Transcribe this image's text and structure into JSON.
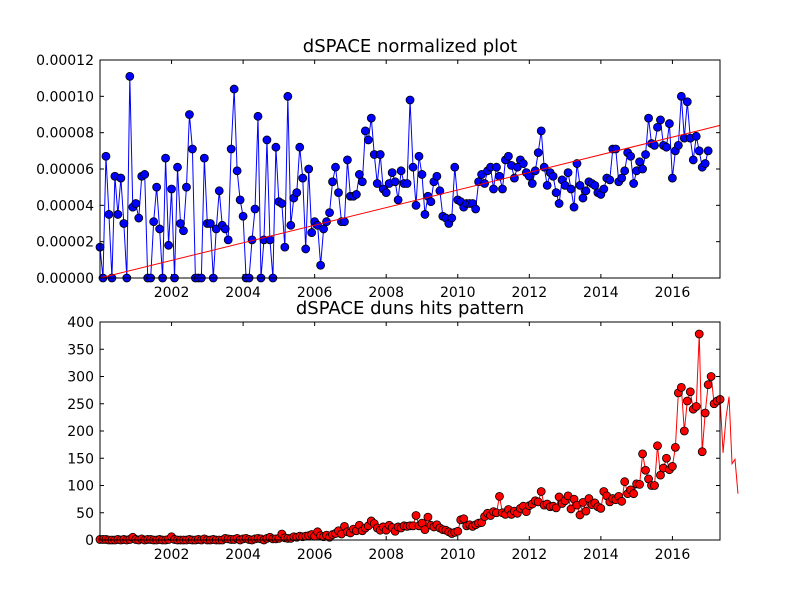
{
  "chart_data": [
    {
      "type": "line",
      "title": "dSPACE normalized plot",
      "xlabel": "",
      "ylabel": "",
      "xlim": [
        2000.0,
        2017.33
      ],
      "ylim": [
        0,
        0.00012
      ],
      "xticks": [
        2002,
        2004,
        2006,
        2008,
        2010,
        2012,
        2014,
        2016
      ],
      "xtick_labels": [
        "2002",
        "2004",
        "2006",
        "2008",
        "2010",
        "2012",
        "2014",
        "2016"
      ],
      "yticks": [
        0,
        2e-05,
        4e-05,
        6e-05,
        8e-05,
        0.0001,
        0.00012
      ],
      "ytick_labels": [
        "0.00000",
        "0.00002",
        "0.00004",
        "0.00006",
        "0.00008",
        "0.00010",
        "0.00012"
      ],
      "grid": false,
      "series": [
        {
          "color": "#0000ff",
          "marker": "circle",
          "x_start": 2000.0,
          "x_step": 0.08333,
          "values": [
            1.7e-05,
            0,
            6.7e-05,
            3.5e-05,
            0,
            5.6e-05,
            3.5e-05,
            5.5e-05,
            3e-05,
            0,
            0.000111,
            3.9e-05,
            4.1e-05,
            3.3e-05,
            5.6e-05,
            5.7e-05,
            0,
            0,
            3.1e-05,
            5e-05,
            2.7e-05,
            0,
            6.6e-05,
            1.8e-05,
            4.9e-05,
            0,
            6.1e-05,
            3e-05,
            2.6e-05,
            5e-05,
            9e-05,
            7.1e-05,
            0,
            0,
            0,
            6.6e-05,
            3e-05,
            3e-05,
            0,
            2.7e-05,
            4.8e-05,
            2.9e-05,
            2.7e-05,
            2.1e-05,
            7.1e-05,
            0.000104,
            5.9e-05,
            4.3e-05,
            3.4e-05,
            0,
            0,
            2.1e-05,
            3.8e-05,
            8.9e-05,
            0,
            2.1e-05,
            7.6e-05,
            2.1e-05,
            0,
            7.2e-05,
            4.2e-05,
            4.1e-05,
            1.7e-05,
            0.0001,
            2.9e-05,
            4.4e-05,
            4.7e-05,
            7.2e-05,
            5.5e-05,
            1.6e-05,
            6e-05,
            2.5e-05,
            3.1e-05,
            2.9e-05,
            7e-06,
            2.7e-05,
            3.1e-05,
            3.6e-05,
            5.3e-05,
            6.1e-05,
            4.7e-05,
            3.1e-05,
            3.1e-05,
            6.5e-05,
            4.5e-05,
            4.5e-05,
            4.6e-05,
            5.7e-05,
            5.3e-05,
            8.1e-05,
            7.6e-05,
            8.8e-05,
            6.8e-05,
            5.2e-05,
            6.8e-05,
            4.9e-05,
            4.7e-05,
            5.2e-05,
            5.8e-05,
            5.3e-05,
            4.3e-05,
            5.9e-05,
            5.2e-05,
            5.2e-05,
            9.8e-05,
            6.1e-05,
            4e-05,
            6.7e-05,
            5.7e-05,
            3.5e-05,
            4.5e-05,
            4.2e-05,
            5.3e-05,
            5.6e-05,
            4.8e-05,
            3.4e-05,
            3.3e-05,
            3e-05,
            3.3e-05,
            6.1e-05,
            4.3e-05,
            4.2e-05,
            3.9e-05,
            4.1e-05,
            4.1e-05,
            4.1e-05,
            3.8e-05,
            5.3e-05,
            5.7e-05,
            5.2e-05,
            5.9e-05,
            6.1e-05,
            4.9e-05,
            6.1e-05,
            5.6e-05,
            4.9e-05,
            6.5e-05,
            6.7e-05,
            6.2e-05,
            5.5e-05,
            6.1e-05,
            6.5e-05,
            6.3e-05,
            5.8e-05,
            5.6e-05,
            5.2e-05,
            5.9e-05,
            6.9e-05,
            8.1e-05,
            6.1e-05,
            5.1e-05,
            5.8e-05,
            5.6e-05,
            4.7e-05,
            4.1e-05,
            5.4e-05,
            5.1e-05,
            5.8e-05,
            4.9e-05,
            3.9e-05,
            6.3e-05,
            5.1e-05,
            4.4e-05,
            4.8e-05,
            5.3e-05,
            5.2e-05,
            5.1e-05,
            4.7e-05,
            4.6e-05,
            4.9e-05,
            5.5e-05,
            5.4e-05,
            7.1e-05,
            7.1e-05,
            5.3e-05,
            5.5e-05,
            5.9e-05,
            6.9e-05,
            6.7e-05,
            5.2e-05,
            5.9e-05,
            6.4e-05,
            6e-05,
            6.8e-05,
            8.8e-05,
            7.4e-05,
            7.3e-05,
            8.3e-05,
            8.7e-05,
            7.3e-05,
            7.2e-05,
            8.5e-05,
            5.5e-05,
            7e-05,
            7.3e-05,
            0.0001,
            7.7e-05,
            9.7e-05,
            7.7e-05,
            6.5e-05,
            7.8e-05,
            7e-05,
            6.1e-05,
            6.3e-05,
            7e-05
          ]
        },
        {
          "color": "#ff0000",
          "marker": "none",
          "kind": "trend",
          "x": [
            2000.0,
            2017.33
          ],
          "y": [
            0.0,
            8.4e-05
          ]
        }
      ]
    },
    {
      "type": "line",
      "title": "dSPACE duns hits pattern",
      "xlabel": "",
      "ylabel": "",
      "xlim": [
        2000.0,
        2017.33
      ],
      "ylim": [
        0,
        400
      ],
      "xticks": [
        2002,
        2004,
        2006,
        2008,
        2010,
        2012,
        2014,
        2016
      ],
      "xtick_labels": [
        "2002",
        "2004",
        "2006",
        "2008",
        "2010",
        "2012",
        "2014",
        "2016"
      ],
      "yticks": [
        0,
        50,
        100,
        150,
        200,
        250,
        300,
        350,
        400
      ],
      "ytick_labels": [
        "0",
        "50",
        "100",
        "150",
        "200",
        "250",
        "300",
        "350",
        "400"
      ],
      "grid": false,
      "series": [
        {
          "color": "#ff0000",
          "marker": "circle",
          "x_start": 2000.0,
          "x_step": 0.08333,
          "values": [
            1,
            1,
            1,
            0,
            0,
            0,
            1,
            0,
            1,
            0,
            1,
            5,
            1,
            0,
            2,
            0,
            1,
            1,
            0,
            0,
            1,
            0,
            0,
            1,
            6,
            1,
            0,
            0,
            0,
            0,
            1,
            0,
            0,
            1,
            0,
            2,
            0,
            0,
            1,
            0,
            0,
            0,
            3,
            2,
            1,
            1,
            3,
            0,
            2,
            3,
            1,
            0,
            2,
            3,
            2,
            0,
            3,
            5,
            2,
            2,
            3,
            11,
            4,
            3,
            3,
            6,
            5,
            7,
            6,
            7,
            8,
            10,
            7,
            15,
            8,
            6,
            9,
            5,
            10,
            12,
            17,
            11,
            25,
            15,
            13,
            20,
            17,
            27,
            17,
            22,
            26,
            35,
            30,
            22,
            18,
            24,
            18,
            27,
            23,
            16,
            24,
            22,
            26,
            25,
            26,
            26,
            45,
            26,
            31,
            19,
            42,
            27,
            24,
            28,
            22,
            19,
            18,
            15,
            12,
            14,
            16,
            37,
            39,
            26,
            28,
            25,
            28,
            31,
            32,
            43,
            49,
            45,
            52,
            50,
            80,
            50,
            47,
            56,
            47,
            53,
            49,
            58,
            62,
            52,
            63,
            66,
            72,
            70,
            89,
            64,
            66,
            61,
            62,
            59,
            79,
            67,
            72,
            81,
            57,
            75,
            64,
            46,
            69,
            53,
            76,
            65,
            68,
            61,
            58,
            89,
            81,
            70,
            76,
            74,
            80,
            71,
            107,
            85,
            92,
            85,
            103,
            102,
            158,
            128,
            112,
            100,
            100,
            173,
            119,
            132,
            150,
            129,
            135,
            170,
            270,
            280,
            200,
            255,
            272,
            240,
            245,
            378,
            162,
            233,
            285,
            300,
            250,
            255,
            258,
            160,
            225,
            263,
            140,
            148,
            85
          ]
        }
      ]
    }
  ]
}
